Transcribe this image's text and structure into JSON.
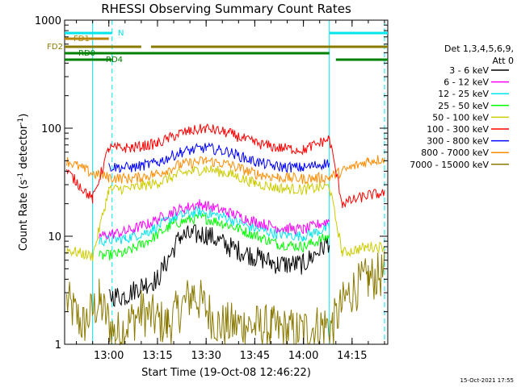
{
  "timestamp": "15-Oct-2021 17:55",
  "chart_data": {
    "type": "line",
    "title": "RHESSI Observing Summary Count Rates",
    "xlabel": "Start Time (19-Oct-08 12:46:22)",
    "ylabel_main": "Count Rate (s",
    "ylabel_exp1": "-1",
    "ylabel_mid": " detector",
    "ylabel_exp2": "-1",
    "ylabel_end": ")",
    "y_scale": "log",
    "ylim": [
      1,
      1000
    ],
    "xlim": [
      "12:46:22",
      "14:26"
    ],
    "x_ticks": [
      "13:00",
      "13:15",
      "13:30",
      "13:45",
      "14:00",
      "14:15"
    ],
    "y_ticks": [
      "1",
      "10",
      "100",
      "1000"
    ],
    "legend_header": [
      "Det 1,3,4,5,6,9,",
      "Att 0"
    ],
    "flag_labels": {
      "night": "N",
      "fd1": "FD1",
      "fd2": "FD2",
      "rd0": "RD0",
      "rd4": "RD4"
    },
    "flags": {
      "N": {
        "color": "#00e5ee",
        "spans": [
          [
            "12:46:22",
            "13:01"
          ],
          [
            "14:08",
            "14:26"
          ]
        ]
      },
      "FD1": {
        "color": "#b8860b",
        "spans": [
          [
            "12:46:22",
            "13:00"
          ]
        ]
      },
      "FD2": {
        "color": "#8b7a00",
        "spans": [
          [
            "12:46:22",
            "13:10"
          ],
          [
            "13:13",
            "14:26"
          ]
        ]
      },
      "RD0": {
        "color": "#008000",
        "spans": [
          [
            "12:46:22",
            "14:08"
          ]
        ]
      },
      "RD4": {
        "color": "#008000",
        "spans": [
          [
            "12:46:22",
            "13:01"
          ],
          [
            "14:10",
            "14:26"
          ]
        ]
      }
    },
    "night_lines": {
      "solid": [
        "12:55",
        "14:08"
      ],
      "dashed": [
        "13:01",
        "14:25"
      ]
    },
    "series": [
      {
        "name": "3 - 6 keV",
        "color": "#000000",
        "x": [
          "13:00",
          "13:05",
          "13:10",
          "13:15",
          "13:22",
          "13:30",
          "13:37",
          "13:45",
          "13:52",
          "14:00",
          "14:08"
        ],
        "values": [
          2.8,
          2.8,
          3.5,
          4.0,
          10,
          10.5,
          8,
          6.5,
          5.5,
          5.5,
          9
        ]
      },
      {
        "name": "6 - 12 keV",
        "color": "#ff00ff",
        "x": [
          "12:57",
          "13:05",
          "13:12",
          "13:20",
          "13:28",
          "13:36",
          "13:44",
          "13:52",
          "14:00",
          "14:08"
        ],
        "values": [
          10,
          11,
          13,
          17,
          20,
          17,
          14,
          12,
          11.5,
          14
        ]
      },
      {
        "name": "12 - 25 keV",
        "color": "#00e5ee",
        "x": [
          "12:57",
          "13:05",
          "13:12",
          "13:20",
          "13:28",
          "13:36",
          "13:44",
          "13:52",
          "14:00",
          "14:08"
        ],
        "values": [
          9,
          9.5,
          11,
          15,
          17,
          15,
          12,
          10.5,
          10,
          12
        ]
      },
      {
        "name": "25 - 50 keV",
        "color": "#00ff00",
        "x": [
          "12:57",
          "13:05",
          "13:12",
          "13:20",
          "13:28",
          "13:36",
          "13:44",
          "13:52",
          "14:00",
          "14:08"
        ],
        "values": [
          6.5,
          7,
          9,
          13,
          15,
          13,
          10.5,
          8.5,
          8,
          10
        ]
      },
      {
        "name": "50 - 100 keV",
        "color": "#cccc00",
        "x": [
          "12:47",
          "12:55",
          "13:00",
          "13:07",
          "13:15",
          "13:22",
          "13:30",
          "13:37",
          "13:45",
          "13:52",
          "14:00",
          "14:08",
          "14:12",
          "14:20",
          "14:25"
        ],
        "values": [
          7.5,
          6.5,
          27,
          28,
          31,
          38,
          42,
          38,
          31,
          28,
          27,
          29,
          7,
          8,
          8
        ]
      },
      {
        "name": "100 - 300 keV",
        "color": "#ff0000",
        "x": [
          "12:47",
          "12:55",
          "13:00",
          "13:07",
          "13:15",
          "13:22",
          "13:30",
          "13:37",
          "13:45",
          "13:52",
          "14:00",
          "14:08",
          "14:12",
          "14:20",
          "14:25"
        ],
        "values": [
          40,
          22,
          65,
          66,
          72,
          90,
          100,
          90,
          73,
          66,
          63,
          80,
          20,
          24,
          25
        ]
      },
      {
        "name": "300 - 800 keV",
        "color": "#0000ff",
        "x": [
          "13:00",
          "13:07",
          "13:15",
          "13:22",
          "13:30",
          "13:37",
          "13:45",
          "13:52",
          "14:00",
          "14:08"
        ],
        "values": [
          44,
          43,
          48,
          60,
          66,
          60,
          49,
          44,
          43,
          48
        ]
      },
      {
        "name": "800 - 7000 keV",
        "color": "#ff8c00",
        "x": [
          "12:47",
          "12:55",
          "13:00",
          "13:07",
          "13:15",
          "13:22",
          "13:30",
          "13:37",
          "13:45",
          "13:52",
          "14:00",
          "14:08",
          "14:12",
          "14:20",
          "14:25"
        ],
        "values": [
          50,
          38,
          35,
          34,
          38,
          46,
          50,
          46,
          38,
          35,
          34,
          35,
          40,
          50,
          52
        ]
      },
      {
        "name": "7000 - 15000 keV",
        "color": "#8b7a00",
        "x": [
          "12:47",
          "12:52",
          "12:57",
          "13:02",
          "13:10",
          "13:18",
          "13:26",
          "13:34",
          "13:42",
          "13:50",
          "13:58",
          "14:06",
          "14:09",
          "14:14",
          "14:20",
          "14:25"
        ],
        "values": [
          2.5,
          1.5,
          2.5,
          1.2,
          2,
          1.5,
          3,
          1.5,
          1.5,
          1.4,
          1.3,
          1.5,
          1.5,
          3,
          4,
          4.5
        ]
      }
    ]
  }
}
